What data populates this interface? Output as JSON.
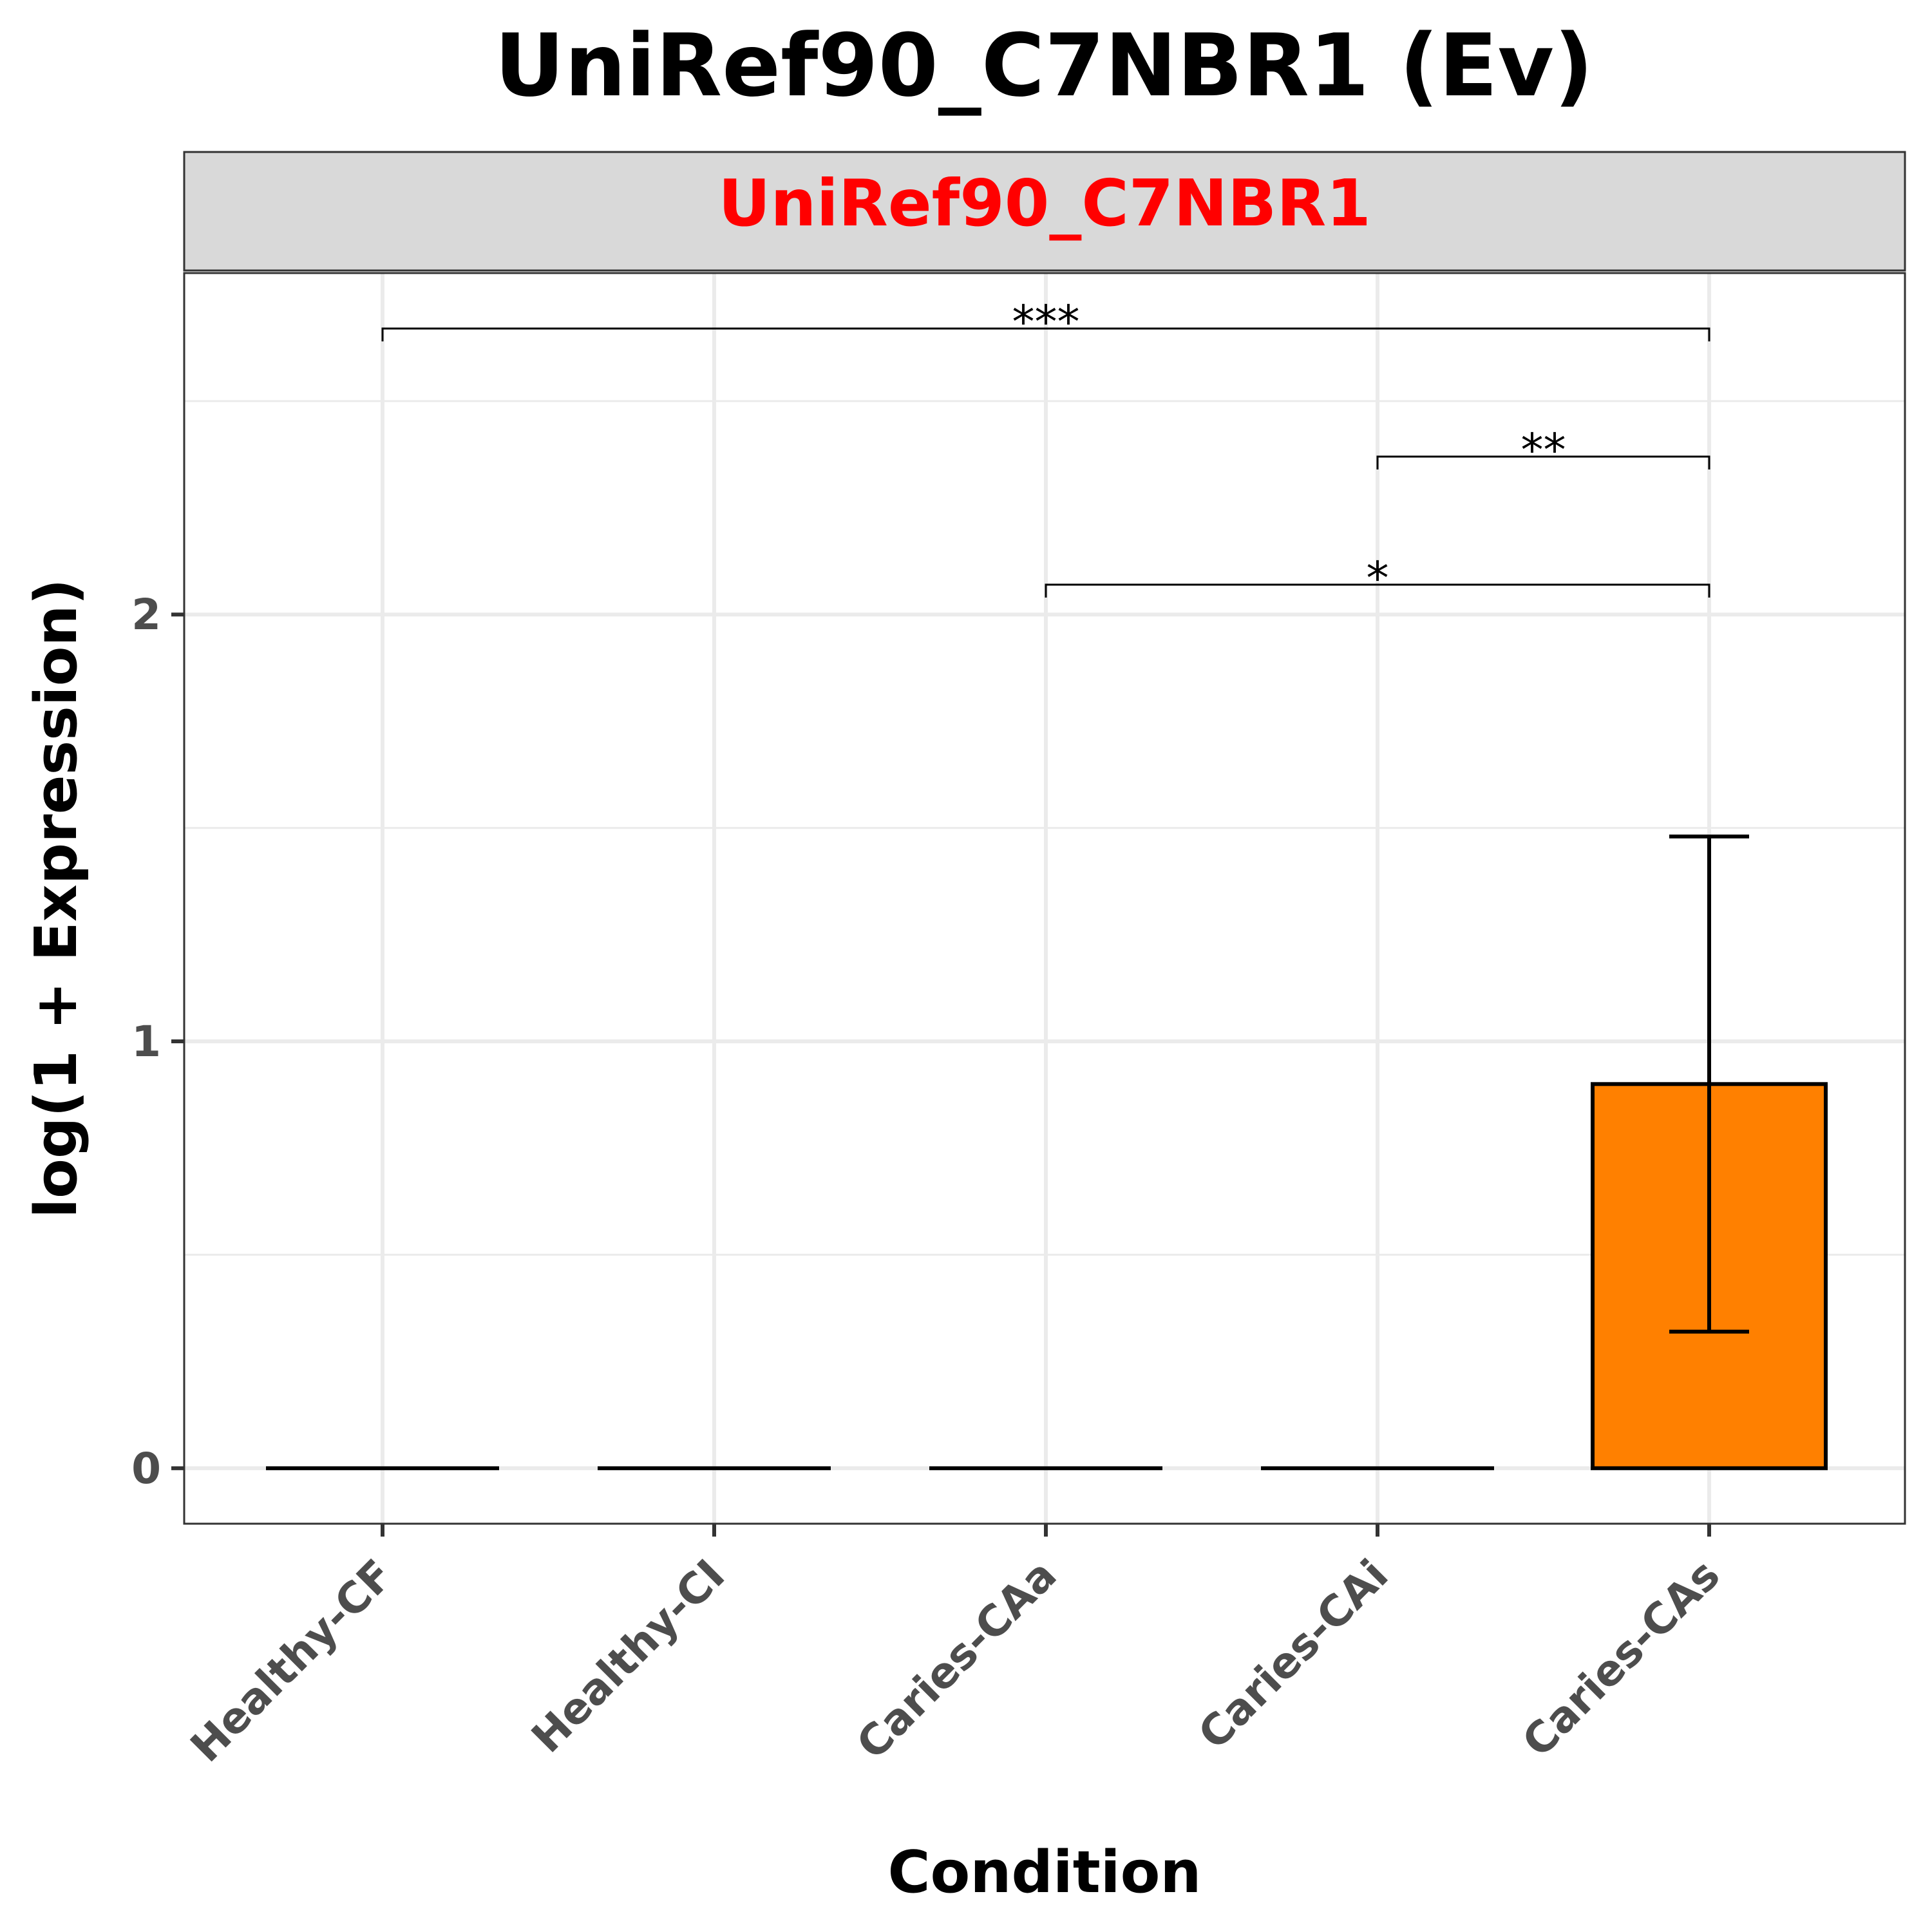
{
  "chart_data": {
    "type": "bar",
    "title": "UniRef90_C7NBR1 (Ev)",
    "facet_label": "UniRef90_C7NBR1",
    "xlabel": "Condition",
    "ylabel": "log(1 + Expression)",
    "categories": [
      "Healthy-CF",
      "Healthy-CI",
      "Caries-CAa",
      "Caries-CAi",
      "Caries-CAs"
    ],
    "values": [
      0,
      0,
      0,
      0,
      0.9
    ],
    "error_bars": [
      {
        "category": "Caries-CAs",
        "low": 0.32,
        "high": 1.48
      }
    ],
    "ylim": [
      -0.13,
      2.8
    ],
    "yticks": [
      "0",
      "1",
      "2"
    ],
    "grid": true,
    "significance": [
      {
        "from": "Healthy-CF",
        "to": "Caries-CAs",
        "label": "***",
        "y": 2.67
      },
      {
        "from": "Caries-CAi",
        "to": "Caries-CAs",
        "label": "**",
        "y": 2.37
      },
      {
        "from": "Caries-CAa",
        "to": "Caries-CAs",
        "label": "*",
        "y": 2.07
      }
    ],
    "colors": {
      "bar_fill": "#ff8000",
      "bar_stroke": "#000000",
      "strip_fill": "#d9d9d9",
      "strip_text": "#ff0000",
      "grid": "#ebebeb",
      "panel_border": "#333333"
    }
  }
}
